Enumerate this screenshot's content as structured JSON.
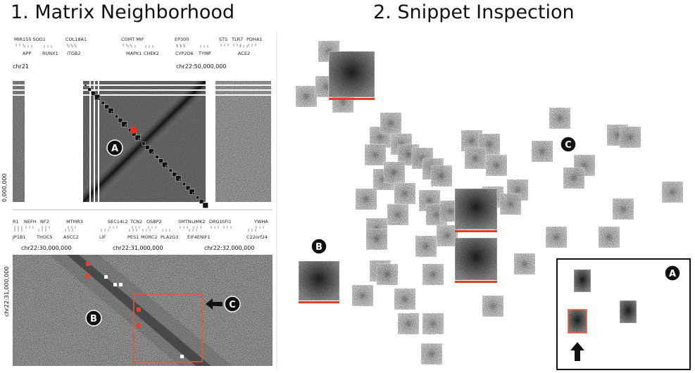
{
  "left": {
    "title": "1. Matrix Neighborhood",
    "genes_top": {
      "upper": [
        "MIR155 SOD1",
        "COL18A1",
        "COMT MIF",
        "EP300",
        "STS",
        "TLR7",
        "PDHA1"
      ],
      "lower": [
        "APP",
        "RUNX1",
        "ITGB2",
        "MAPK1",
        "CHEK2",
        "CYP2D6",
        "TYMP",
        "ACE2"
      ]
    },
    "axis_top": {
      "start": "chr21",
      "mid": "chr22:50,000,000",
      "side": "0,000,000"
    },
    "genes_bottom": {
      "upper": [
        "R1",
        "NEFH",
        "NF2",
        "MTMR3",
        "SEC14L2",
        "TCN2",
        "OSBP2",
        "SMTN",
        "LIMK2",
        "DRG1",
        "SFI1",
        "YWHA"
      ],
      "lower": [
        "JP1B1",
        "THOC5",
        "ASCC2",
        "LIF",
        "PES1",
        "MORC2",
        "PLA2G3",
        "EIF4ENIF1",
        "C22orf24"
      ]
    },
    "axis_bottom": {
      "ticks": [
        "chr22:30,000,000",
        "chr22:31,000,000",
        "chr22:32,000,000"
      ],
      "side": "chr22:31,000,000"
    },
    "markers": [
      "A",
      "B",
      "C"
    ]
  },
  "right": {
    "title": "2. Snippet Inspection",
    "markers": [
      "A",
      "B",
      "C"
    ]
  }
}
